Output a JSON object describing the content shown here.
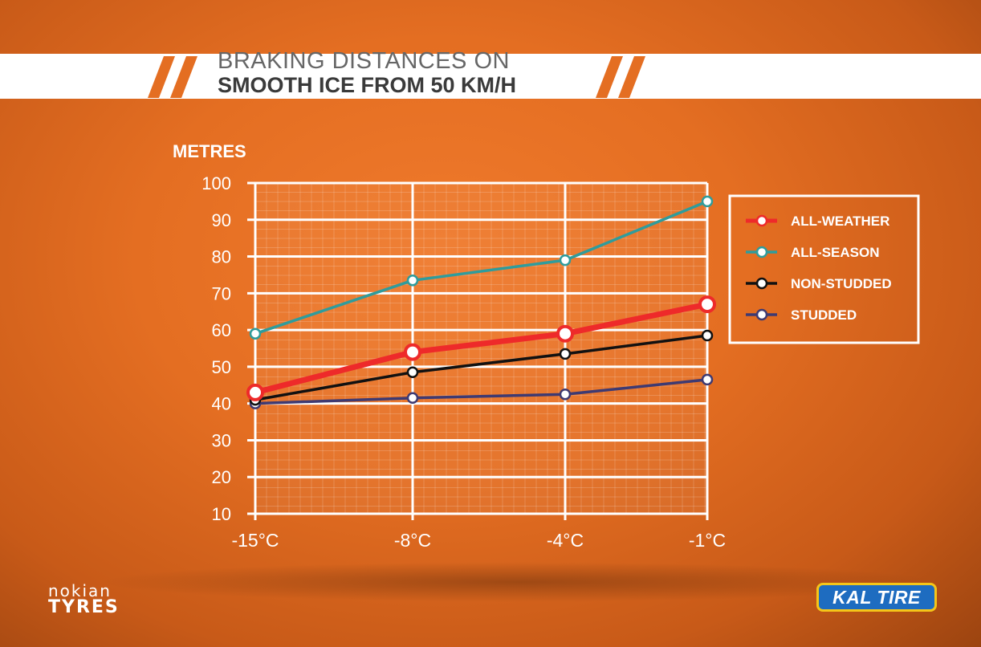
{
  "header": {
    "title_line1": "BRAKING DISTANCES ON",
    "title_line2": "SMOOTH ICE FROM 50 KM/H"
  },
  "chart_data": {
    "type": "line",
    "title": "BRAKING DISTANCES ON SMOOTH ICE FROM 50 KM/H",
    "ylabel": "METRES",
    "xlabel": "",
    "categories": [
      "-15°C",
      "-8°C",
      "-4°C",
      "-1°C"
    ],
    "y_ticks": [
      "100",
      "90",
      "80",
      "70",
      "60",
      "50",
      "40",
      "30",
      "20",
      "10"
    ],
    "ylim": [
      10,
      100
    ],
    "grid": true,
    "legend_position": "right",
    "series": [
      {
        "name": "ALL-WEATHER",
        "values": [
          43,
          54,
          59,
          67
        ],
        "color": "#ee2a2a"
      },
      {
        "name": "ALL-SEASON",
        "values": [
          59,
          73.5,
          79,
          95
        ],
        "color": "#2f9c9c"
      },
      {
        "name": "NON-STUDDED",
        "values": [
          41,
          48.5,
          53.5,
          58.5
        ],
        "color": "#111111"
      },
      {
        "name": "STUDDED",
        "values": [
          40,
          41.5,
          42.5,
          46.5
        ],
        "color": "#3e3a72"
      }
    ]
  },
  "logos": {
    "left_top": "nokian",
    "left_bottom": "TYRES",
    "right": "KAL TIRE"
  },
  "colors": {
    "background": "#e46e22",
    "grid": "#ffffff"
  }
}
